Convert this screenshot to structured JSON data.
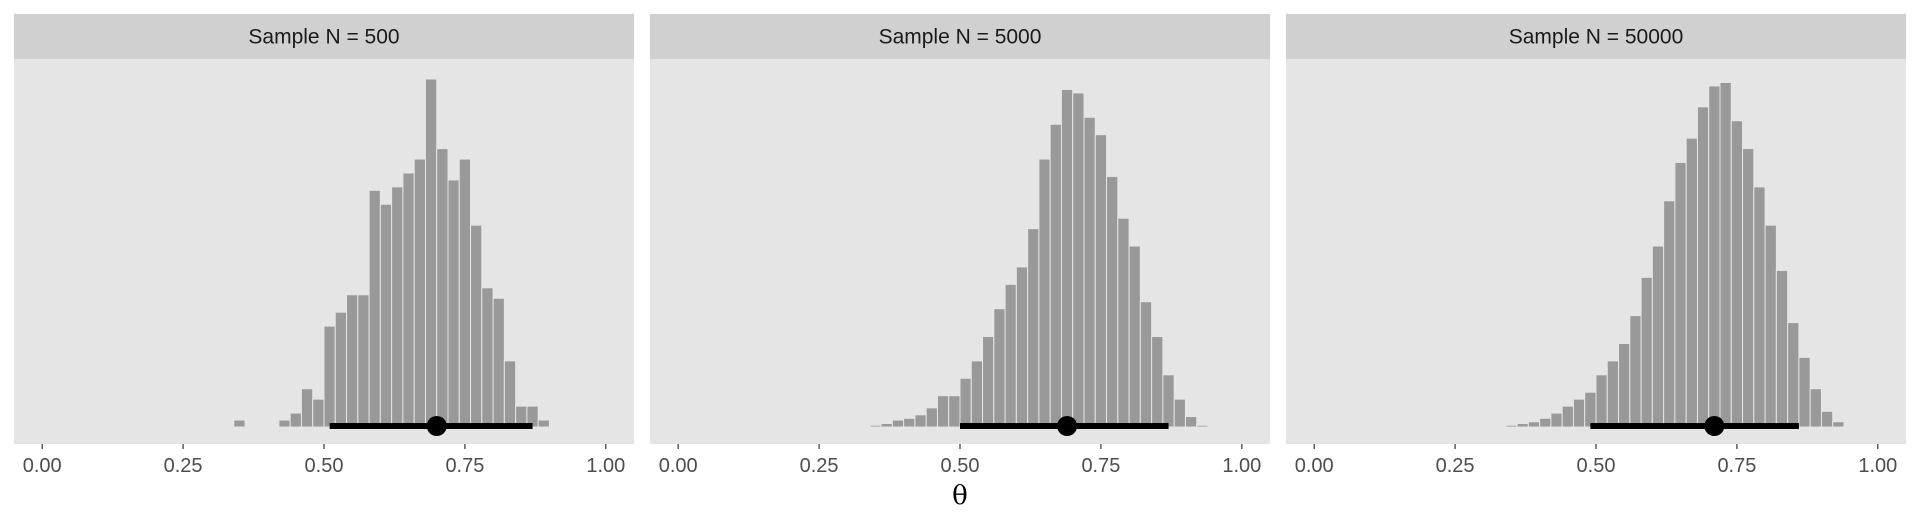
{
  "chart_data": {
    "type": "histogram",
    "xlabel": "θ",
    "ylabel": "",
    "xlim": [
      -0.05,
      1.05
    ],
    "x_ticks": [
      0,
      0.25,
      0.5,
      0.75,
      1
    ],
    "x_tick_labels": [
      "0.00",
      "0.25",
      "0.50",
      "0.75",
      "1.00"
    ],
    "y_ticks_shown": false,
    "grid": false,
    "colors": {
      "panel_bg": "#e5e5e5",
      "strip_bg": "#d0d0d0",
      "bar_fill": "#999999",
      "bar_outline": "#e5e5e5",
      "interval": "#000000"
    },
    "bin_width": 0.02,
    "panels": [
      {
        "title": "Sample N = 500",
        "bins": [
          [
            0.34,
            0.02
          ],
          [
            0.42,
            0.02
          ],
          [
            0.44,
            0.04
          ],
          [
            0.46,
            0.11
          ],
          [
            0.48,
            0.08
          ],
          [
            0.5,
            0.29
          ],
          [
            0.52,
            0.33
          ],
          [
            0.54,
            0.38
          ],
          [
            0.56,
            0.38
          ],
          [
            0.58,
            0.68
          ],
          [
            0.6,
            0.64
          ],
          [
            0.62,
            0.69
          ],
          [
            0.64,
            0.73
          ],
          [
            0.66,
            0.77
          ],
          [
            0.68,
            1.0
          ],
          [
            0.7,
            0.8
          ],
          [
            0.72,
            0.71
          ],
          [
            0.74,
            0.77
          ],
          [
            0.76,
            0.58
          ],
          [
            0.78,
            0.4
          ],
          [
            0.8,
            0.37
          ],
          [
            0.82,
            0.19
          ],
          [
            0.84,
            0.06
          ],
          [
            0.86,
            0.06
          ],
          [
            0.88,
            0.02
          ]
        ],
        "point_estimate": 0.7,
        "interval": [
          0.51,
          0.87
        ]
      },
      {
        "title": "Sample N = 5000",
        "bins": [
          [
            0.34,
            0.005
          ],
          [
            0.36,
            0.01
          ],
          [
            0.38,
            0.02
          ],
          [
            0.4,
            0.025
          ],
          [
            0.42,
            0.035
          ],
          [
            0.44,
            0.055
          ],
          [
            0.46,
            0.09
          ],
          [
            0.48,
            0.09
          ],
          [
            0.5,
            0.14
          ],
          [
            0.52,
            0.19
          ],
          [
            0.54,
            0.26
          ],
          [
            0.56,
            0.34
          ],
          [
            0.58,
            0.41
          ],
          [
            0.6,
            0.46
          ],
          [
            0.62,
            0.57
          ],
          [
            0.64,
            0.77
          ],
          [
            0.66,
            0.87
          ],
          [
            0.68,
            0.97
          ],
          [
            0.7,
            0.96
          ],
          [
            0.72,
            0.89
          ],
          [
            0.74,
            0.84
          ],
          [
            0.76,
            0.72
          ],
          [
            0.78,
            0.6
          ],
          [
            0.8,
            0.52
          ],
          [
            0.82,
            0.36
          ],
          [
            0.84,
            0.26
          ],
          [
            0.86,
            0.15
          ],
          [
            0.88,
            0.08
          ],
          [
            0.9,
            0.03
          ],
          [
            0.92,
            0.005
          ]
        ],
        "point_estimate": 0.69,
        "interval": [
          0.5,
          0.87
        ]
      },
      {
        "title": "Sample N = 50000",
        "bins": [
          [
            0.34,
            0.005
          ],
          [
            0.36,
            0.01
          ],
          [
            0.38,
            0.015
          ],
          [
            0.4,
            0.025
          ],
          [
            0.42,
            0.04
          ],
          [
            0.44,
            0.06
          ],
          [
            0.46,
            0.08
          ],
          [
            0.48,
            0.1
          ],
          [
            0.5,
            0.15
          ],
          [
            0.52,
            0.19
          ],
          [
            0.54,
            0.24
          ],
          [
            0.56,
            0.32
          ],
          [
            0.58,
            0.43
          ],
          [
            0.6,
            0.52
          ],
          [
            0.62,
            0.65
          ],
          [
            0.64,
            0.76
          ],
          [
            0.66,
            0.83
          ],
          [
            0.68,
            0.92
          ],
          [
            0.7,
            0.98
          ],
          [
            0.72,
            0.99
          ],
          [
            0.74,
            0.88
          ],
          [
            0.76,
            0.8
          ],
          [
            0.78,
            0.69
          ],
          [
            0.8,
            0.58
          ],
          [
            0.82,
            0.45
          ],
          [
            0.84,
            0.3
          ],
          [
            0.86,
            0.2
          ],
          [
            0.88,
            0.11
          ],
          [
            0.9,
            0.045
          ],
          [
            0.92,
            0.015
          ]
        ],
        "point_estimate": 0.71,
        "interval": [
          0.49,
          0.86
        ]
      }
    ]
  }
}
